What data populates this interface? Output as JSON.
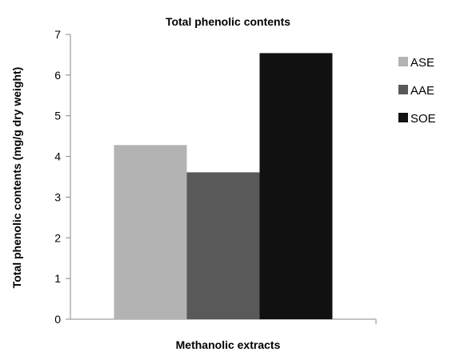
{
  "chart_data": {
    "type": "bar",
    "title": "Total phenolic contents",
    "xlabel": "Methanolic extracts",
    "ylabel": "Total phenolic contents (mg/g dry weight)",
    "categories": [
      ""
    ],
    "ylim": [
      0,
      7
    ],
    "yticks": [
      0,
      1,
      2,
      3,
      4,
      5,
      6,
      7
    ],
    "grid": false,
    "legend_position": "right",
    "series": [
      {
        "name": "ASE",
        "values": [
          4.28
        ],
        "color": "#b3b3b3"
      },
      {
        "name": "AAE",
        "values": [
          3.61
        ],
        "color": "#595959"
      },
      {
        "name": "SOE",
        "values": [
          6.54
        ],
        "color": "#111111"
      }
    ]
  }
}
